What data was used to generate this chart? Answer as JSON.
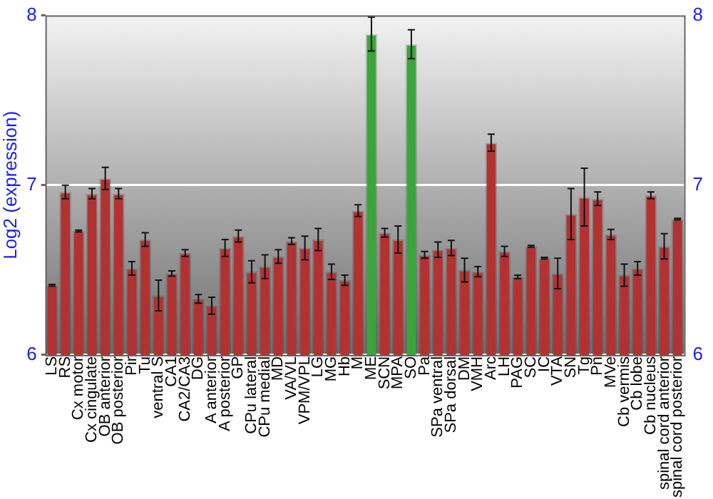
{
  "chart_data": {
    "type": "bar",
    "ylabel": "Log2 (expression)",
    "categories": [
      "LS",
      "RS",
      "Cx motor",
      "Cx cingulate",
      "OB anterior",
      "OB posterior",
      "Pir",
      "Tu",
      "ventral S",
      "CA1",
      "CA2/CA3",
      "DG",
      "A anterior",
      "A posterior",
      "GP",
      "CPu lateral",
      "CPu medial",
      "MD",
      "VA/VL",
      "VPM/VPL",
      "LG",
      "MG",
      "Hb",
      "M",
      "ME",
      "SCN",
      "MPA",
      "SO",
      "Pa",
      "SPa ventral",
      "SPa dorsal",
      "DM",
      "VMH",
      "Arc",
      "LH",
      "PAG",
      "SC",
      "IC",
      "VTA",
      "SN",
      "Tg",
      "Pn",
      "MVe",
      "Cb vermis",
      "Cb lobe",
      "Cb nucleus",
      "spinal cord anterior",
      "spinal cord posterior"
    ],
    "values": [
      6.41,
      6.96,
      6.73,
      6.95,
      7.04,
      6.95,
      6.51,
      6.68,
      6.35,
      6.48,
      6.6,
      6.33,
      6.29,
      6.63,
      6.7,
      6.49,
      6.52,
      6.58,
      6.67,
      6.63,
      6.68,
      6.49,
      6.44,
      6.85,
      7.89,
      6.72,
      6.68,
      7.83,
      6.59,
      6.62,
      6.63,
      6.5,
      6.49,
      7.25,
      6.61,
      6.46,
      6.64,
      6.57,
      6.48,
      6.83,
      6.93,
      6.92,
      6.71,
      6.47,
      6.51,
      6.94,
      6.64,
      6.8
    ],
    "errors": [
      0.005,
      0.04,
      0.005,
      0.03,
      0.065,
      0.03,
      0.04,
      0.04,
      0.09,
      0.015,
      0.02,
      0.025,
      0.05,
      0.05,
      0.035,
      0.065,
      0.07,
      0.04,
      0.02,
      0.07,
      0.065,
      0.045,
      0.03,
      0.035,
      0.1,
      0.025,
      0.08,
      0.085,
      0.02,
      0.045,
      0.045,
      0.07,
      0.03,
      0.05,
      0.03,
      0.01,
      0.005,
      0.005,
      0.09,
      0.15,
      0.17,
      0.04,
      0.03,
      0.065,
      0.04,
      0.02,
      0.075,
      0.005
    ],
    "colors": [
      "#b23232",
      "#b23232",
      "#b23232",
      "#b23232",
      "#b23232",
      "#b23232",
      "#b23232",
      "#b23232",
      "#b23232",
      "#b23232",
      "#b23232",
      "#b23232",
      "#b23232",
      "#b23232",
      "#b23232",
      "#b23232",
      "#b23232",
      "#b23232",
      "#b23232",
      "#b23232",
      "#b23232",
      "#b23232",
      "#b23232",
      "#b23232",
      "#3aa53a",
      "#b23232",
      "#b23232",
      "#3aa53a",
      "#b23232",
      "#b23232",
      "#b23232",
      "#b23232",
      "#b23232",
      "#b23232",
      "#b23232",
      "#b23232",
      "#b23232",
      "#b23232",
      "#b23232",
      "#b23232",
      "#b23232",
      "#b23232",
      "#b23232",
      "#b23232",
      "#b23232",
      "#b23232",
      "#b23232",
      "#b23232"
    ],
    "ylim": [
      6,
      8
    ],
    "yticks": [
      6,
      7,
      8
    ],
    "y2lim": [
      6,
      8
    ],
    "y2ticks": [
      6,
      7,
      8
    ],
    "grid": "y"
  }
}
